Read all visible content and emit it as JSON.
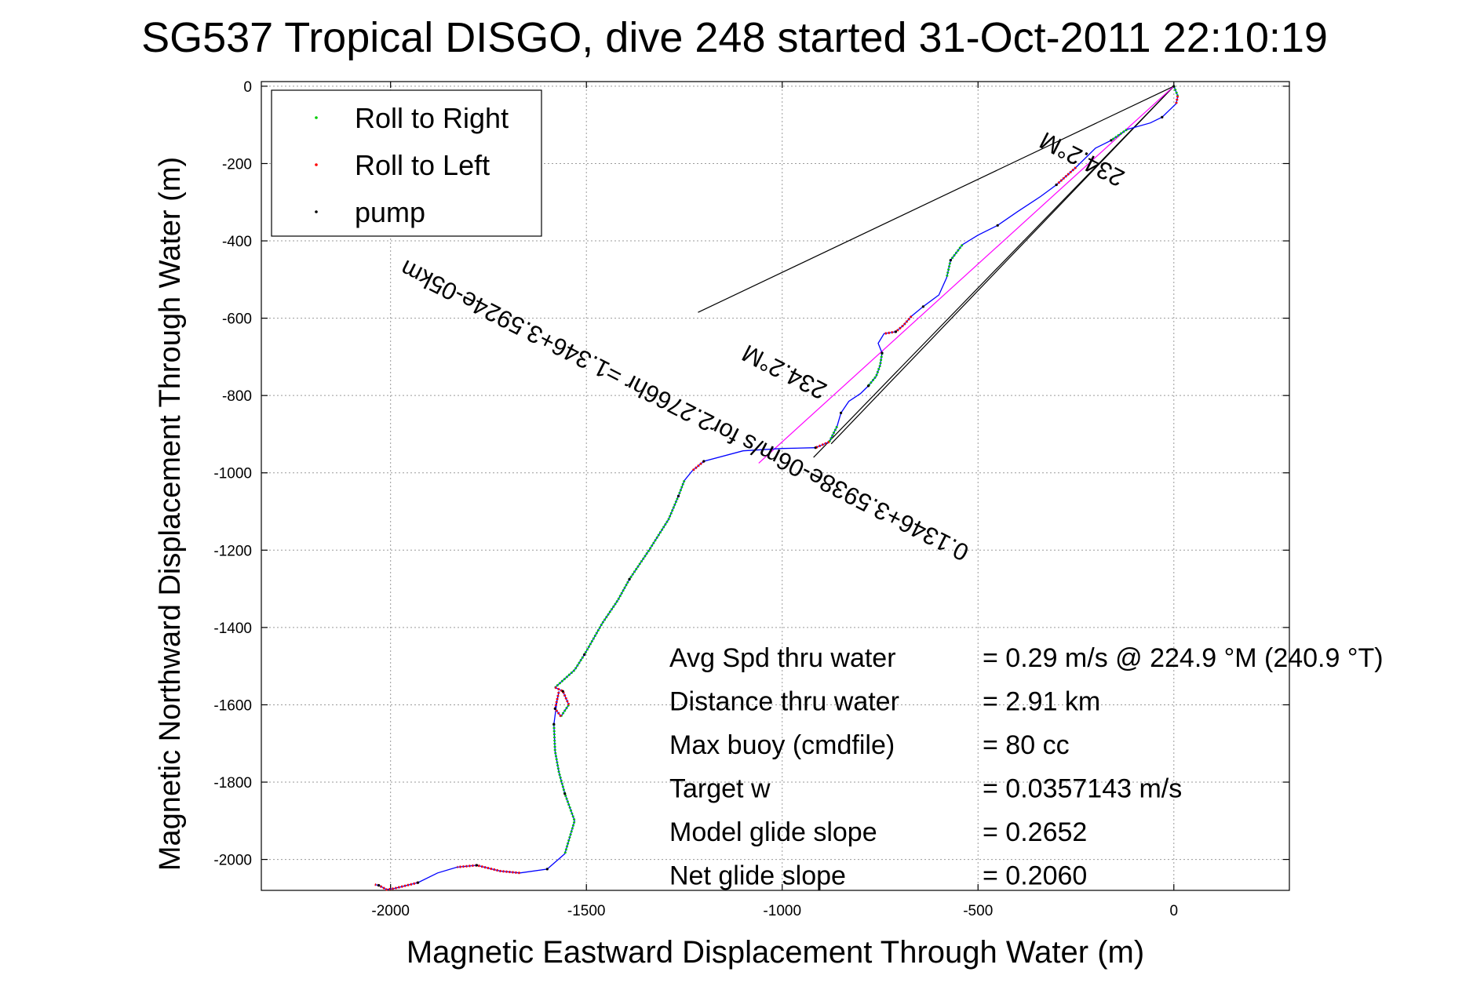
{
  "chart_data": {
    "type": "line",
    "title": "SG537 Tropical DISGO, dive 248 started 31-Oct-2011 22:10:19",
    "xlabel": "Magnetic Eastward Displacement Through Water (m)",
    "ylabel": "Magnetic Northward Displacement Through Water (m)",
    "xlim": [
      -2330,
      295
    ],
    "ylim": [
      -2080,
      12
    ],
    "grid": true,
    "x_ticks": [
      -2000,
      -1500,
      -1000,
      -500,
      0
    ],
    "y_ticks": [
      0,
      -200,
      -400,
      -600,
      -800,
      -1000,
      -1200,
      -1400,
      -1600,
      -1800,
      -2000
    ],
    "x_tick_labels": [
      "-2000",
      "-1500",
      "-1000",
      "-500",
      "0"
    ],
    "y_tick_labels": [
      "0",
      "-200",
      "-400",
      "-600",
      "-800",
      "-1000",
      "-1200",
      "-1400",
      "-1600",
      "-1800",
      "-2000"
    ],
    "legend": {
      "placement": "top-left",
      "entries": [
        {
          "label": "Roll to Right",
          "color": "#00cc00"
        },
        {
          "label": "Roll to Left",
          "color": "#ff0000"
        },
        {
          "label": "pump",
          "color": "#000000"
        }
      ]
    },
    "track": {
      "color": "#0000ff",
      "points": [
        [
          0,
          0
        ],
        [
          10,
          -25
        ],
        [
          6,
          -45
        ],
        [
          -30,
          -80
        ],
        [
          -60,
          -95
        ],
        [
          -120,
          -112
        ],
        [
          -160,
          -140
        ],
        [
          -200,
          -160
        ],
        [
          -250,
          -210
        ],
        [
          -300,
          -255
        ],
        [
          -340,
          -285
        ],
        [
          -400,
          -325
        ],
        [
          -450,
          -360
        ],
        [
          -500,
          -385
        ],
        [
          -540,
          -410
        ],
        [
          -570,
          -450
        ],
        [
          -580,
          -495
        ],
        [
          -600,
          -540
        ],
        [
          -640,
          -570
        ],
        [
          -670,
          -595
        ],
        [
          -690,
          -618
        ],
        [
          -710,
          -635
        ],
        [
          -740,
          -640
        ],
        [
          -755,
          -665
        ],
        [
          -745,
          -690
        ],
        [
          -750,
          -722
        ],
        [
          -760,
          -750
        ],
        [
          -780,
          -775
        ],
        [
          -800,
          -795
        ],
        [
          -830,
          -815
        ],
        [
          -850,
          -845
        ],
        [
          -860,
          -880
        ],
        [
          -880,
          -920
        ],
        [
          -915,
          -935
        ],
        [
          -1000,
          -937
        ],
        [
          -1100,
          -943
        ],
        [
          -1200,
          -970
        ],
        [
          -1230,
          -995
        ],
        [
          -1250,
          -1020
        ],
        [
          -1265,
          -1060
        ],
        [
          -1290,
          -1120
        ],
        [
          -1340,
          -1200
        ],
        [
          -1390,
          -1275
        ],
        [
          -1420,
          -1330
        ],
        [
          -1460,
          -1390
        ],
        [
          -1505,
          -1470
        ],
        [
          -1530,
          -1510
        ],
        [
          -1580,
          -1555
        ],
        [
          -1560,
          -1565
        ],
        [
          -1545,
          -1600
        ],
        [
          -1565,
          -1630
        ],
        [
          -1580,
          -1610
        ],
        [
          -1570,
          -1565
        ],
        [
          -1575,
          -1590
        ],
        [
          -1583,
          -1650
        ],
        [
          -1580,
          -1720
        ],
        [
          -1570,
          -1775
        ],
        [
          -1555,
          -1830
        ],
        [
          -1530,
          -1900
        ],
        [
          -1555,
          -1985
        ],
        [
          -1600,
          -2025
        ],
        [
          -1670,
          -2035
        ],
        [
          -1720,
          -2030
        ],
        [
          -1780,
          -2015
        ],
        [
          -1830,
          -2020
        ],
        [
          -1880,
          -2035
        ],
        [
          -1930,
          -2060
        ],
        [
          -1990,
          -2075
        ],
        [
          -2010,
          -2078
        ],
        [
          -2030,
          -2067
        ],
        [
          -2040,
          -2065
        ]
      ],
      "roll_right_segments": [
        [
          [
            0,
            0
          ],
          [
            10,
            -25
          ]
        ],
        [
          [
            -120,
            -112
          ],
          [
            -160,
            -140
          ]
        ],
        [
          [
            -540,
            -410
          ],
          [
            -570,
            -450
          ],
          [
            -580,
            -495
          ]
        ],
        [
          [
            -745,
            -690
          ],
          [
            -750,
            -722
          ],
          [
            -760,
            -750
          ],
          [
            -780,
            -775
          ]
        ],
        [
          [
            -860,
            -880
          ],
          [
            -880,
            -920
          ]
        ],
        [
          [
            -1250,
            -1020
          ],
          [
            -1265,
            -1060
          ],
          [
            -1290,
            -1120
          ],
          [
            -1340,
            -1200
          ],
          [
            -1390,
            -1275
          ],
          [
            -1420,
            -1330
          ],
          [
            -1460,
            -1390
          ],
          [
            -1505,
            -1470
          ],
          [
            -1530,
            -1510
          ],
          [
            -1580,
            -1555
          ]
        ],
        [
          [
            -1545,
            -1600
          ],
          [
            -1565,
            -1630
          ]
        ],
        [
          [
            -1583,
            -1650
          ],
          [
            -1580,
            -1720
          ],
          [
            -1570,
            -1775
          ],
          [
            -1555,
            -1830
          ],
          [
            -1530,
            -1900
          ],
          [
            -1555,
            -1985
          ]
        ]
      ],
      "roll_left_segments": [
        [
          [
            10,
            -25
          ],
          [
            6,
            -45
          ]
        ],
        [
          [
            -250,
            -210
          ],
          [
            -300,
            -255
          ]
        ],
        [
          [
            -670,
            -595
          ],
          [
            -690,
            -618
          ],
          [
            -710,
            -635
          ],
          [
            -740,
            -640
          ]
        ],
        [
          [
            -880,
            -920
          ],
          [
            -915,
            -935
          ]
        ],
        [
          [
            -1200,
            -970
          ],
          [
            -1230,
            -995
          ]
        ],
        [
          [
            -1580,
            -1555
          ],
          [
            -1560,
            -1565
          ],
          [
            -1545,
            -1600
          ]
        ],
        [
          [
            -1565,
            -1630
          ],
          [
            -1580,
            -1610
          ],
          [
            -1570,
            -1565
          ]
        ],
        [
          [
            -1670,
            -2035
          ],
          [
            -1720,
            -2030
          ],
          [
            -1780,
            -2015
          ],
          [
            -1830,
            -2020
          ]
        ],
        [
          [
            -1930,
            -2060
          ],
          [
            -1990,
            -2075
          ],
          [
            -2010,
            -2078
          ],
          [
            -2030,
            -2067
          ],
          [
            -2040,
            -2065
          ]
        ]
      ]
    },
    "bearing_lines": [
      {
        "from": [
          0,
          0
        ],
        "to": [
          -1215,
          -585
        ],
        "color": "#000000"
      },
      {
        "from": [
          0,
          0
        ],
        "to": [
          -920,
          -960
        ],
        "color": "#000000"
      },
      {
        "from": [
          0,
          0
        ],
        "to": [
          -875,
          -925
        ],
        "color": "#000000"
      },
      {
        "from": [
          0,
          0
        ],
        "to": [
          -1060,
          -975
        ],
        "color": "#ff00ff"
      }
    ],
    "annotations": [
      {
        "text": "234.2°M",
        "x": -225,
        "y": -170,
        "angle": 27
      },
      {
        "text": "0.1346+3.5938e-06m/s for2.2766hr =1.346+3.5924e-05km",
        "x": -1240,
        "y": -820,
        "angle": 27
      },
      {
        "text": "234.2°M",
        "x": -985,
        "y": -720,
        "angle": 27
      }
    ],
    "stats": [
      {
        "label": "Avg Spd thru water",
        "value": "=  0.29 m/s @ 224.9 °M (240.9 °T)"
      },
      {
        "label": "Distance thru water",
        "value": "=  2.91 km"
      },
      {
        "label": "Max buoy (cmdfile)",
        "value": "= 80 cc"
      },
      {
        "label": "Target w",
        "value": "= 0.0357143 m/s"
      },
      {
        "label": "Model glide slope",
        "value": "= 0.2652"
      },
      {
        "label": "Net glide slope",
        "value": "= 0.2060"
      }
    ]
  }
}
